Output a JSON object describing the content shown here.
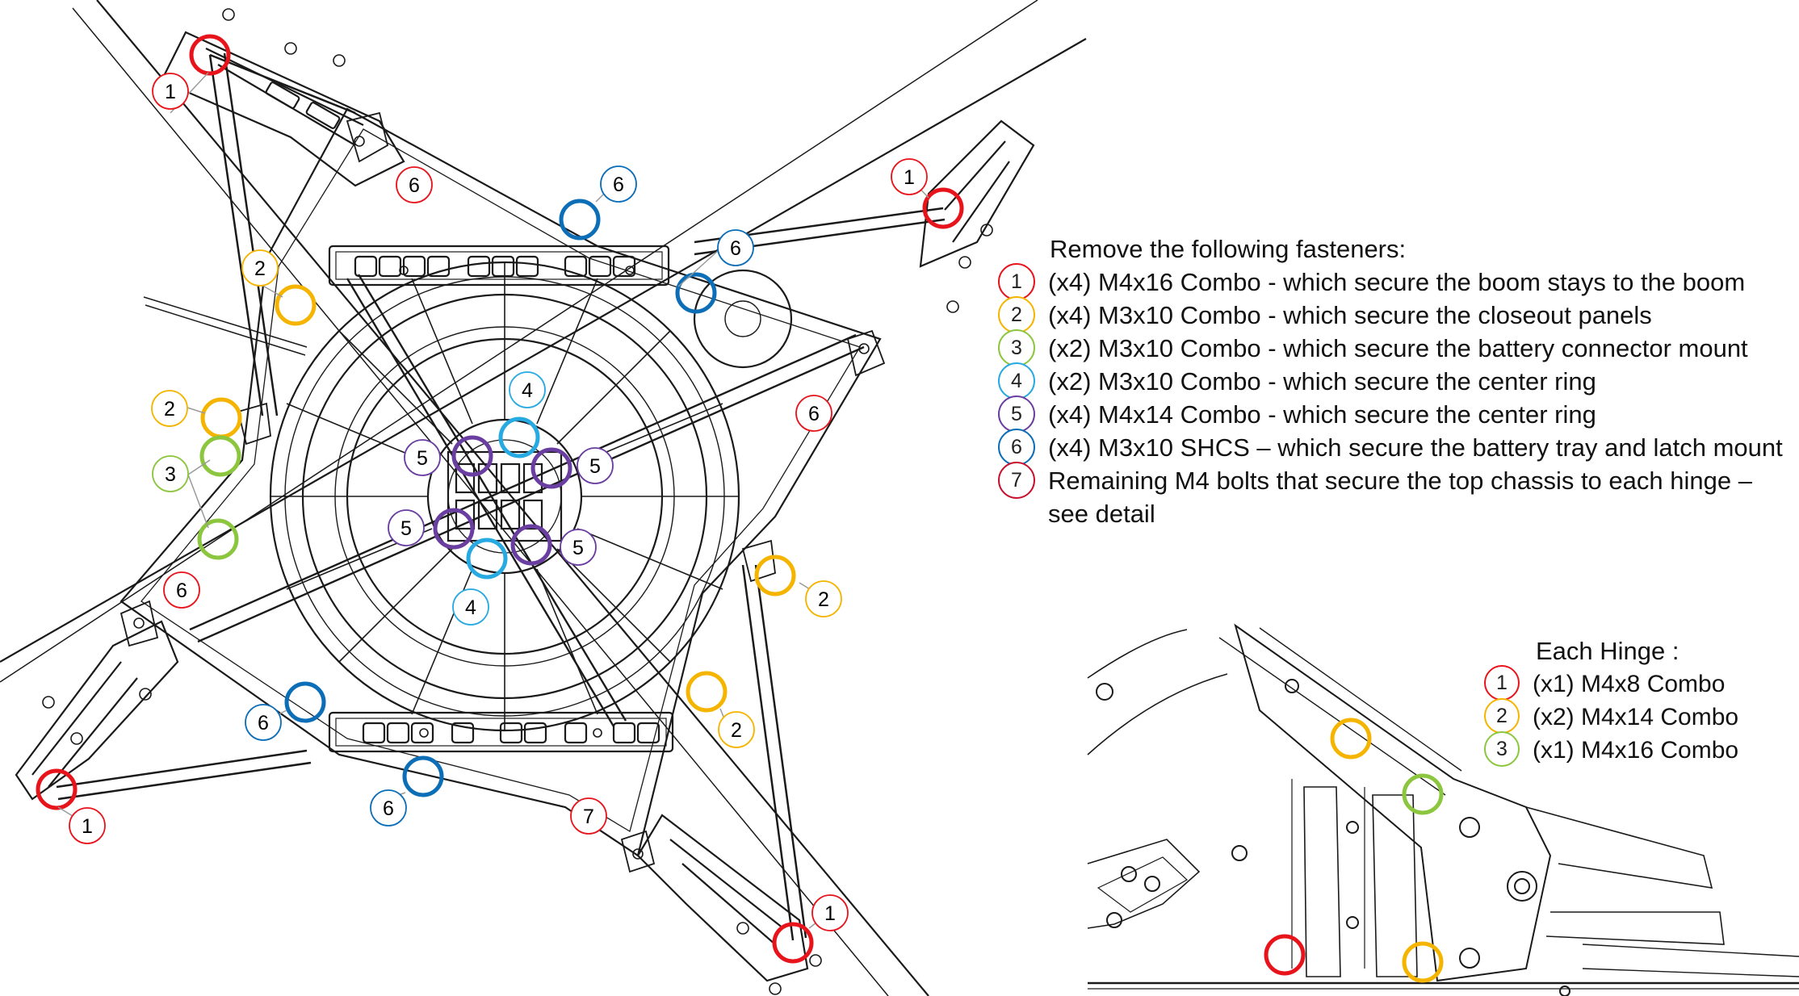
{
  "legend": {
    "title": "Remove the following fasteners:",
    "items": [
      {
        "num": "1",
        "color": "#e8141b",
        "text": "(x4) M4x16 Combo - which secure the boom stays to the boom"
      },
      {
        "num": "2",
        "color": "#f5b400",
        "text": "(x4) M3x10 Combo - which secure the closeout panels"
      },
      {
        "num": "3",
        "color": "#8cc63e",
        "text": "(x2) M3x10 Combo - which secure the battery connector mount"
      },
      {
        "num": "4",
        "color": "#27a9e1",
        "text": "(x2) M3x10 Combo - which secure the center ring"
      },
      {
        "num": "5",
        "color": "#6a3ea1",
        "text": "(x4) M4x14 Combo - which secure the center ring"
      },
      {
        "num": "6",
        "color": "#0d6eb8",
        "text": "(x4) M3x10 SHCS – which secure the battery tray and latch mount"
      },
      {
        "num": "7",
        "color": "#c8102e",
        "text": "Remaining M4 bolts that secure the top chassis to each hinge – see detail"
      }
    ]
  },
  "hinge_legend": {
    "title": "Each Hinge :",
    "items": [
      {
        "num": "1",
        "color": "#e8141b",
        "text": "(x1) M4x8 Combo"
      },
      {
        "num": "2",
        "color": "#f5b400",
        "text": "(x2) M4x14 Combo"
      },
      {
        "num": "3",
        "color": "#8cc63e",
        "text": "(x1) M4x16 Combo"
      }
    ]
  },
  "callouts": {
    "one": "1",
    "two": "2",
    "three": "3",
    "four": "4",
    "five": "5",
    "six": "6",
    "seven": "7"
  },
  "colors": {
    "red": "#e8141b",
    "yellow": "#f5b400",
    "green": "#8cc63e",
    "cyan": "#27a9e1",
    "purple": "#6a3ea1",
    "blue": "#0d6eb8",
    "line": "#1a1a1a"
  }
}
